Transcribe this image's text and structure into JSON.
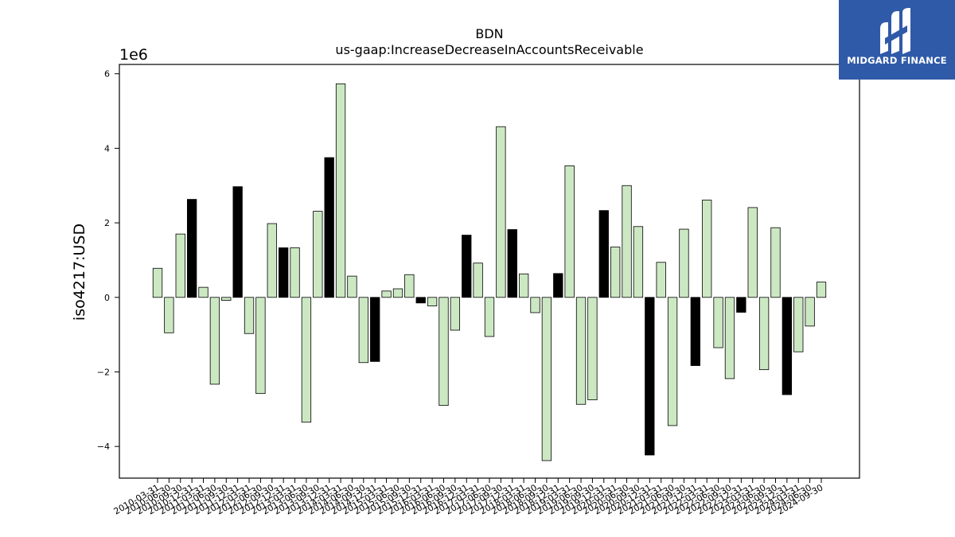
{
  "brand": {
    "name": "MIDGARD FINANCE",
    "icon": "midgard-finance-logo-icon",
    "bg_color": "#2f5aa8"
  },
  "chart_data": {
    "type": "bar",
    "title": "BDN",
    "subtitle": "us-gaap:IncreaseDecreaseInAccountsReceivable",
    "ylabel": "iso4217:USD",
    "xlabel": "",
    "offset_text": "1e6",
    "unit_multiplier": 1000000,
    "ylim": [
      -4.85,
      6.25
    ],
    "yticks": [
      -4,
      -2,
      0,
      2,
      4,
      6
    ],
    "ytick_labels": [
      "−4",
      "−2",
      "0",
      "2",
      "4",
      "6"
    ],
    "grid": false,
    "colors": {
      "quarter": "#cce8c3",
      "annual": "#000000",
      "edge": "#000000"
    },
    "categories": [
      "2010-03-31",
      "2010-06-30",
      "2010-09-30",
      "2010-12-31",
      "2011-03-31",
      "2011-06-30",
      "2011-09-30",
      "2011-12-31",
      "2012-03-31",
      "2012-06-30",
      "2012-09-30",
      "2012-12-31",
      "2013-03-31",
      "2013-06-30",
      "2013-09-30",
      "2013-12-31",
      "2014-03-31",
      "2014-06-30",
      "2014-09-30",
      "2014-12-31",
      "2015-03-31",
      "2015-06-30",
      "2015-09-30",
      "2015-12-31",
      "2016-03-31",
      "2016-06-30",
      "2016-09-30",
      "2016-12-31",
      "2017-03-31",
      "2017-06-30",
      "2017-09-30",
      "2017-12-31",
      "2018-03-31",
      "2018-06-30",
      "2018-09-30",
      "2018-12-31",
      "2019-03-31",
      "2019-06-30",
      "2019-09-30",
      "2019-12-31",
      "2020-03-31",
      "2020-06-30",
      "2020-09-30",
      "2020-12-31",
      "2021-03-31",
      "2021-06-30",
      "2021-09-30",
      "2021-12-31",
      "2022-03-31",
      "2022-06-30",
      "2022-09-30",
      "2022-12-31",
      "2023-03-31",
      "2023-06-30",
      "2023-09-30",
      "2023-12-31",
      "2024-03-31",
      "2024-06-30",
      "2024-09-30"
    ],
    "values": [
      0.78,
      -0.95,
      1.7,
      2.63,
      0.27,
      -2.33,
      -0.08,
      2.97,
      -0.97,
      -2.58,
      1.98,
      1.33,
      1.33,
      -3.35,
      2.31,
      3.75,
      5.73,
      0.57,
      -1.75,
      -1.72,
      0.17,
      0.23,
      0.61,
      -0.15,
      -0.23,
      -2.9,
      -0.88,
      1.67,
      0.92,
      -1.05,
      4.58,
      1.82,
      0.63,
      -0.41,
      -4.38,
      0.64,
      3.53,
      -2.87,
      -2.75,
      2.33,
      1.35,
      3.0,
      1.9,
      -4.23,
      0.94,
      -3.44,
      1.83,
      -1.83,
      2.61,
      -1.35,
      -2.18,
      -0.4,
      2.41,
      -1.94,
      1.87,
      -2.61,
      -1.46,
      -0.77,
      0.41
    ],
    "annual_flags": [
      0,
      0,
      0,
      1,
      0,
      0,
      0,
      1,
      0,
      0,
      0,
      1,
      0,
      0,
      0,
      1,
      0,
      0,
      0,
      1,
      0,
      0,
      0,
      1,
      0,
      0,
      0,
      1,
      0,
      0,
      0,
      1,
      0,
      0,
      0,
      1,
      0,
      0,
      0,
      1,
      0,
      0,
      0,
      1,
      0,
      0,
      0,
      1,
      0,
      0,
      0,
      1,
      0,
      0,
      0,
      1,
      0,
      0,
      0
    ]
  }
}
